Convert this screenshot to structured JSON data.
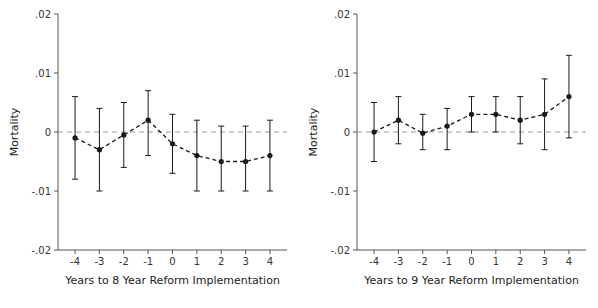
{
  "chart_data": [
    {
      "type": "line",
      "xlabel": "Years to 8 Year Reform Implementation",
      "ylabel": "Mortality",
      "x": [
        -4,
        -3,
        -2,
        -1,
        0,
        1,
        2,
        3,
        4
      ],
      "series": [
        {
          "color": "#1a1a1a",
          "line_style": "dashed",
          "marker": "circle",
          "values": [
            -0.001,
            -0.003,
            -0.0005,
            0.002,
            -0.002,
            -0.004,
            -0.005,
            -0.005,
            -0.004
          ],
          "upper": [
            0.006,
            0.004,
            0.005,
            0.007,
            0.003,
            0.002,
            0.001,
            0.001,
            0.002
          ],
          "lower": [
            -0.008,
            -0.01,
            -0.006,
            -0.004,
            -0.007,
            -0.01,
            -0.01,
            -0.01,
            -0.01
          ]
        }
      ],
      "xlim": [
        -4.7,
        4.7
      ],
      "xticks": [
        -4,
        -3,
        -2,
        -1,
        0,
        1,
        2,
        3,
        4
      ],
      "ylim": [
        -0.02,
        0.02
      ],
      "yticks": [
        {
          "value": -0.02,
          "label": "-.02"
        },
        {
          "value": -0.01,
          "label": "-.01"
        },
        0,
        {
          "value": 0.01,
          "label": ".01"
        },
        {
          "value": 0.02,
          "label": ".02"
        }
      ],
      "grid": false
    },
    {
      "type": "line",
      "xlabel": "Years to 9 Year Reform Implementation",
      "ylabel": "Mortality",
      "x": [
        -4,
        -3,
        -2,
        -1,
        0,
        1,
        2,
        3,
        4
      ],
      "series": [
        {
          "color": "#1a1a1a",
          "line_style": "dashed",
          "marker": "circle",
          "values": [
            0.0,
            0.002,
            -0.0002,
            0.001,
            0.003,
            0.003,
            0.002,
            0.003,
            0.006
          ],
          "upper": [
            0.005,
            0.006,
            0.003,
            0.004,
            0.006,
            0.006,
            0.006,
            0.009,
            0.013
          ],
          "lower": [
            -0.005,
            -0.002,
            -0.003,
            -0.003,
            0.0,
            0.0,
            -0.002,
            -0.003,
            -0.001
          ]
        }
      ],
      "xlim": [
        -4.7,
        4.7
      ],
      "xticks": [
        -4,
        -3,
        -2,
        -1,
        0,
        1,
        2,
        3,
        4
      ],
      "ylim": [
        -0.02,
        0.02
      ],
      "yticks": [
        {
          "value": -0.02,
          "label": "-.02"
        },
        {
          "value": -0.01,
          "label": "-.01"
        },
        0,
        {
          "value": 0.01,
          "label": ".01"
        },
        {
          "value": 0.02,
          "label": ".02"
        }
      ],
      "grid": false
    }
  ]
}
